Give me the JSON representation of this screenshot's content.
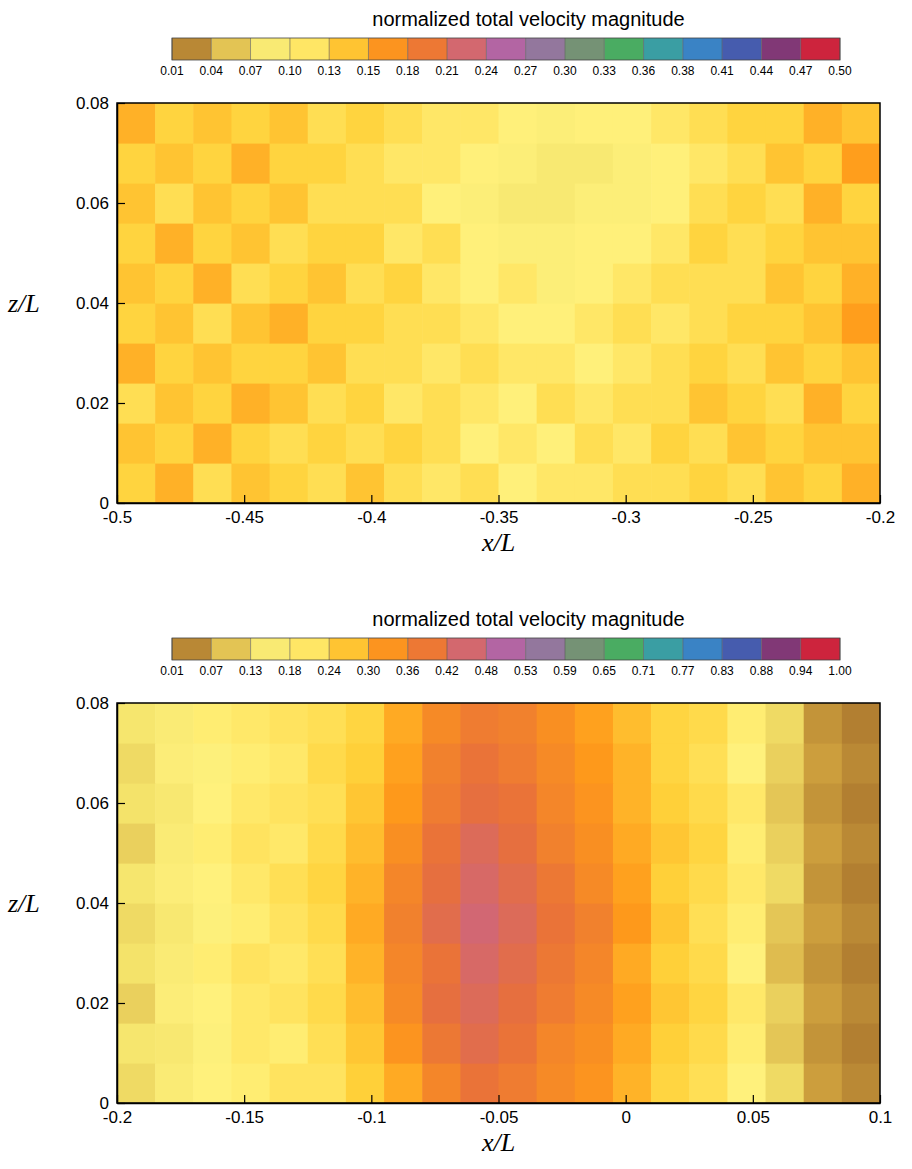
{
  "chart_data": [
    {
      "type": "heatmap",
      "title": "normalized total velocity magnitude",
      "x_label": "x/L",
      "y_label": "z/L",
      "xlim": [
        -0.5,
        -0.2
      ],
      "ylim": [
        0,
        0.08
      ],
      "xticks": [
        -0.5,
        -0.45,
        -0.4,
        -0.35,
        -0.3,
        -0.25,
        -0.2
      ],
      "yticks": [
        0,
        0.02,
        0.04,
        0.06,
        0.08
      ],
      "x": [
        -0.4925,
        -0.4775,
        -0.4625,
        -0.4475,
        -0.4325,
        -0.4175,
        -0.4025,
        -0.3875,
        -0.3725,
        -0.3575,
        -0.3425,
        -0.3275,
        -0.3125,
        -0.2975,
        -0.2825,
        -0.2675,
        -0.2525,
        -0.2375,
        -0.2225,
        -0.2075
      ],
      "y": [
        0.004,
        0.012,
        0.02,
        0.028,
        0.036,
        0.044,
        0.052,
        0.06,
        0.068,
        0.076
      ],
      "values": [
        [
          0.13,
          0.15,
          0.12,
          0.14,
          0.13,
          0.12,
          0.14,
          0.12,
          0.11,
          0.12,
          0.1,
          0.11,
          0.11,
          0.12,
          0.12,
          0.13,
          0.12,
          0.14,
          0.13,
          0.15
        ],
        [
          0.14,
          0.13,
          0.15,
          0.13,
          0.12,
          0.13,
          0.12,
          0.13,
          0.12,
          0.1,
          0.11,
          0.1,
          0.12,
          0.11,
          0.13,
          0.12,
          0.14,
          0.13,
          0.14,
          0.14
        ],
        [
          0.12,
          0.14,
          0.13,
          0.15,
          0.14,
          0.12,
          0.13,
          0.11,
          0.12,
          0.11,
          0.1,
          0.12,
          0.11,
          0.12,
          0.12,
          0.14,
          0.13,
          0.12,
          0.15,
          0.13
        ],
        [
          0.15,
          0.13,
          0.14,
          0.13,
          0.13,
          0.14,
          0.12,
          0.12,
          0.11,
          0.12,
          0.11,
          0.11,
          0.1,
          0.11,
          0.12,
          0.13,
          0.12,
          0.14,
          0.13,
          0.14
        ],
        [
          0.13,
          0.14,
          0.12,
          0.14,
          0.15,
          0.13,
          0.13,
          0.12,
          0.12,
          0.11,
          0.1,
          0.1,
          0.11,
          0.12,
          0.11,
          0.12,
          0.13,
          0.13,
          0.14,
          0.16
        ],
        [
          0.14,
          0.13,
          0.15,
          0.12,
          0.13,
          0.14,
          0.12,
          0.13,
          0.11,
          0.1,
          0.11,
          0.09,
          0.1,
          0.11,
          0.12,
          0.12,
          0.12,
          0.14,
          0.13,
          0.15
        ],
        [
          0.13,
          0.15,
          0.13,
          0.14,
          0.12,
          0.13,
          0.13,
          0.11,
          0.12,
          0.1,
          0.09,
          0.09,
          0.1,
          0.1,
          0.11,
          0.13,
          0.12,
          0.13,
          0.14,
          0.14
        ],
        [
          0.14,
          0.12,
          0.14,
          0.13,
          0.14,
          0.12,
          0.12,
          0.12,
          0.1,
          0.09,
          0.08,
          0.08,
          0.09,
          0.09,
          0.1,
          0.12,
          0.13,
          0.12,
          0.15,
          0.13
        ],
        [
          0.13,
          0.14,
          0.13,
          0.15,
          0.13,
          0.13,
          0.12,
          0.11,
          0.11,
          0.1,
          0.09,
          0.08,
          0.08,
          0.09,
          0.1,
          0.11,
          0.12,
          0.14,
          0.13,
          0.16
        ],
        [
          0.15,
          0.13,
          0.14,
          0.13,
          0.14,
          0.12,
          0.13,
          0.12,
          0.11,
          0.11,
          0.1,
          0.09,
          0.1,
          0.1,
          0.11,
          0.12,
          0.13,
          0.13,
          0.15,
          0.14
        ]
      ],
      "colorbar": {
        "range": [
          0.01,
          0.5
        ],
        "ticks": [
          {
            "value": 0.01,
            "label": "0.01"
          },
          {
            "value": 0.0388,
            "label": "0.04"
          },
          {
            "value": 0.0676,
            "label": "0.07"
          },
          {
            "value": 0.0965,
            "label": "0.10"
          },
          {
            "value": 0.1253,
            "label": "0.13"
          },
          {
            "value": 0.1541,
            "label": "0.15"
          },
          {
            "value": 0.1829,
            "label": "0.18"
          },
          {
            "value": 0.2118,
            "label": "0.21"
          },
          {
            "value": 0.2406,
            "label": "0.24"
          },
          {
            "value": 0.2694,
            "label": "0.27"
          },
          {
            "value": 0.2982,
            "label": "0.30"
          },
          {
            "value": 0.3271,
            "label": "0.33"
          },
          {
            "value": 0.3559,
            "label": "0.36"
          },
          {
            "value": 0.3847,
            "label": "0.38"
          },
          {
            "value": 0.4135,
            "label": "0.41"
          },
          {
            "value": 0.4424,
            "label": "0.44"
          },
          {
            "value": 0.4712,
            "label": "0.47"
          },
          {
            "value": 0.5,
            "label": "0.50"
          }
        ]
      }
    },
    {
      "type": "heatmap",
      "title": "normalized total velocity magnitude",
      "x_label": "x/L",
      "y_label": "z/L",
      "xlim": [
        -0.2,
        0.1
      ],
      "ylim": [
        0,
        0.08
      ],
      "xticks": [
        -0.2,
        -0.15,
        -0.1,
        -0.05,
        0,
        0.05,
        0.1
      ],
      "yticks": [
        0,
        0.02,
        0.04,
        0.06,
        0.08
      ],
      "x": [
        -0.1925,
        -0.1775,
        -0.1625,
        -0.1475,
        -0.1325,
        -0.1175,
        -0.1025,
        -0.0875,
        -0.0725,
        -0.0575,
        -0.0425,
        -0.0275,
        -0.0125,
        0.0025,
        0.0175,
        0.0325,
        0.0475,
        0.0625,
        0.0775,
        0.0925
      ],
      "y": [
        0.004,
        0.012,
        0.02,
        0.028,
        0.036,
        0.044,
        0.052,
        0.06,
        0.068,
        0.076
      ],
      "values": [
        [
          0.12,
          0.16,
          0.19,
          0.2,
          0.22,
          0.22,
          0.26,
          0.3,
          0.36,
          0.4,
          0.38,
          0.35,
          0.33,
          0.29,
          0.25,
          0.23,
          0.19,
          0.12,
          0.06,
          0.04
        ],
        [
          0.14,
          0.15,
          0.18,
          0.21,
          0.2,
          0.23,
          0.27,
          0.33,
          0.39,
          0.42,
          0.4,
          0.36,
          0.34,
          0.3,
          0.26,
          0.24,
          0.2,
          0.1,
          0.05,
          0.03
        ],
        [
          0.11,
          0.17,
          0.19,
          0.21,
          0.22,
          0.24,
          0.28,
          0.35,
          0.41,
          0.43,
          0.41,
          0.38,
          0.35,
          0.31,
          0.27,
          0.25,
          0.21,
          0.11,
          0.06,
          0.04
        ],
        [
          0.13,
          0.16,
          0.2,
          0.22,
          0.21,
          0.23,
          0.29,
          0.36,
          0.4,
          0.44,
          0.42,
          0.39,
          0.36,
          0.3,
          0.26,
          0.24,
          0.19,
          0.09,
          0.05,
          0.03
        ],
        [
          0.12,
          0.15,
          0.18,
          0.2,
          0.22,
          0.24,
          0.3,
          0.37,
          0.42,
          0.45,
          0.43,
          0.4,
          0.37,
          0.32,
          0.27,
          0.23,
          0.2,
          0.1,
          0.06,
          0.04
        ],
        [
          0.14,
          0.17,
          0.19,
          0.21,
          0.23,
          0.25,
          0.29,
          0.36,
          0.41,
          0.44,
          0.42,
          0.39,
          0.35,
          0.31,
          0.26,
          0.24,
          0.21,
          0.12,
          0.05,
          0.03
        ],
        [
          0.11,
          0.16,
          0.2,
          0.22,
          0.21,
          0.24,
          0.28,
          0.34,
          0.4,
          0.43,
          0.41,
          0.37,
          0.34,
          0.3,
          0.27,
          0.25,
          0.2,
          0.11,
          0.06,
          0.04
        ],
        [
          0.13,
          0.15,
          0.19,
          0.21,
          0.22,
          0.23,
          0.27,
          0.32,
          0.38,
          0.41,
          0.4,
          0.36,
          0.33,
          0.29,
          0.26,
          0.24,
          0.21,
          0.1,
          0.05,
          0.03
        ],
        [
          0.12,
          0.17,
          0.18,
          0.2,
          0.21,
          0.24,
          0.26,
          0.31,
          0.37,
          0.4,
          0.38,
          0.35,
          0.32,
          0.29,
          0.25,
          0.23,
          0.19,
          0.11,
          0.06,
          0.04
        ],
        [
          0.14,
          0.16,
          0.2,
          0.21,
          0.22,
          0.23,
          0.25,
          0.3,
          0.35,
          0.38,
          0.37,
          0.34,
          0.31,
          0.28,
          0.25,
          0.24,
          0.2,
          0.12,
          0.05,
          0.03
        ]
      ],
      "colorbar": {
        "range": [
          0.01,
          1.0
        ],
        "ticks": [
          {
            "value": 0.01,
            "label": "0.01"
          },
          {
            "value": 0.0682,
            "label": "0.07"
          },
          {
            "value": 0.1265,
            "label": "0.13"
          },
          {
            "value": 0.1847,
            "label": "0.18"
          },
          {
            "value": 0.2429,
            "label": "0.24"
          },
          {
            "value": 0.3012,
            "label": "0.30"
          },
          {
            "value": 0.3594,
            "label": "0.36"
          },
          {
            "value": 0.4176,
            "label": "0.42"
          },
          {
            "value": 0.4759,
            "label": "0.48"
          },
          {
            "value": 0.5341,
            "label": "0.53"
          },
          {
            "value": 0.5924,
            "label": "0.59"
          },
          {
            "value": 0.6506,
            "label": "0.65"
          },
          {
            "value": 0.7088,
            "label": "0.71"
          },
          {
            "value": 0.7671,
            "label": "0.77"
          },
          {
            "value": 0.8253,
            "label": "0.83"
          },
          {
            "value": 0.8835,
            "label": "0.88"
          },
          {
            "value": 0.9418,
            "label": "0.94"
          },
          {
            "value": 1.0,
            "label": "1.00"
          }
        ]
      }
    }
  ]
}
